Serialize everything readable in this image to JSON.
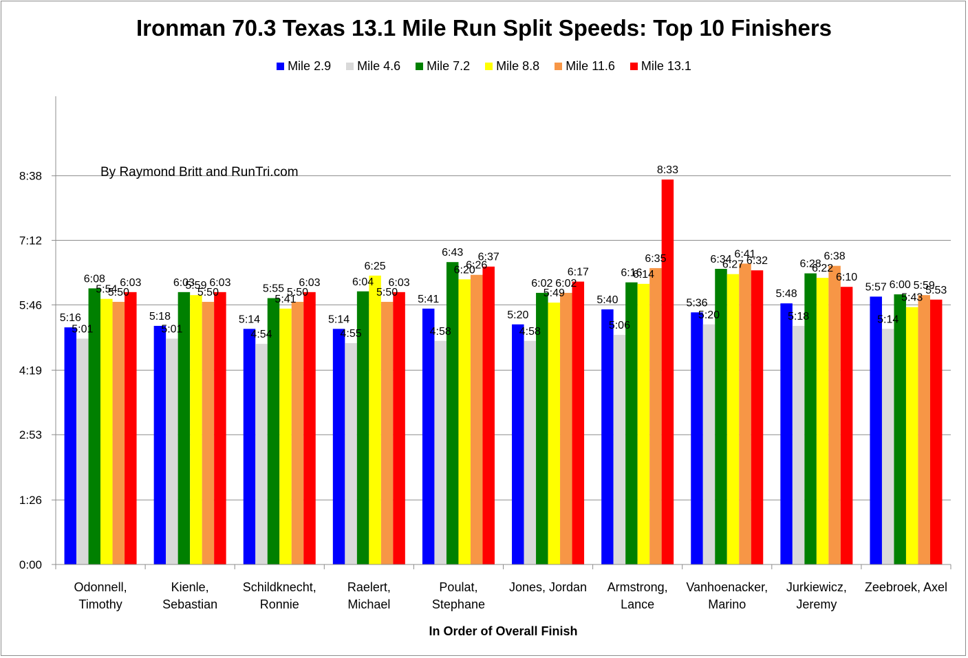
{
  "chart_data": {
    "type": "bar",
    "title": "Ironman 70.3 Texas 13.1 Mile Run Split Speeds: Top 10 Finishers",
    "annotation": "By Raymond Britt and RunTri.com",
    "xlabel": "In Order of Overall Finish",
    "ylabel": "",
    "y_unit": "seconds per mile (displayed as m:ss)",
    "ylim": [
      0,
      624
    ],
    "y_ticks": [
      0,
      86,
      173,
      259,
      346,
      432,
      518
    ],
    "y_tick_labels": [
      "0:00",
      "1:26",
      "2:53",
      "4:19",
      "5:46",
      "7:12",
      "8:38"
    ],
    "grid": true,
    "legend_position": "top",
    "categories": [
      [
        "Odonnell,",
        "Timothy"
      ],
      [
        "Kienle,",
        "Sebastian"
      ],
      [
        "Schildknecht,",
        "Ronnie"
      ],
      [
        "Raelert,",
        "Michael"
      ],
      [
        "Poulat,",
        "Stephane"
      ],
      [
        "Jones, Jordan"
      ],
      [
        "Armstrong,",
        "Lance"
      ],
      [
        "Vanhoenacker,",
        "Marino"
      ],
      [
        "Jurkiewicz,",
        "Jeremy"
      ],
      [
        "Zeebroek, Axel"
      ]
    ],
    "series": [
      {
        "name": "Mile 2.9",
        "color": "#0000ff",
        "values": [
          316,
          318,
          314,
          314,
          341,
          320,
          340,
          336,
          348,
          357
        ],
        "labels": [
          "5:16",
          "5:18",
          "5:14",
          "5:14",
          "5:41",
          "5:20",
          "5:40",
          "5:36",
          "5:48",
          "5:57"
        ]
      },
      {
        "name": "Mile 4.6",
        "color": "#d9d9d9",
        "values": [
          301,
          301,
          294,
          295,
          298,
          298,
          306,
          320,
          318,
          314
        ],
        "labels": [
          "5:01",
          "5:01",
          "4:54",
          "4:55",
          "4:58",
          "4:58",
          "5:06",
          "5:20",
          "5:18",
          "5:14"
        ]
      },
      {
        "name": "Mile 7.2",
        "color": "#008000",
        "values": [
          368,
          363,
          355,
          364,
          403,
          362,
          376,
          394,
          388,
          360
        ],
        "labels": [
          "6:08",
          "6:03",
          "5:55",
          "6:04",
          "6:43",
          "6:02",
          "6:16",
          "6:34",
          "6:28",
          "6:00"
        ]
      },
      {
        "name": "Mile 8.8",
        "color": "#ffff00",
        "values": [
          354,
          359,
          341,
          385,
          380,
          349,
          374,
          387,
          382,
          343
        ],
        "labels": [
          "5:54",
          "5:59",
          "5:41",
          "6:25",
          "6:20",
          "5:49",
          "6:14",
          "6:27",
          "6:22",
          "5:43"
        ]
      },
      {
        "name": "Mile 11.6",
        "color": "#f79646",
        "values": [
          350,
          350,
          350,
          350,
          386,
          362,
          395,
          401,
          398,
          359
        ],
        "labels": [
          "5:50",
          "5:50",
          "5:50",
          "5:50",
          "6:26",
          "6:02",
          "6:35",
          "6:41",
          "6:38",
          "5:59"
        ]
      },
      {
        "name": "Mile 13.1",
        "color": "#ff0000",
        "values": [
          363,
          363,
          363,
          363,
          397,
          377,
          513,
          392,
          370,
          353
        ],
        "labels": [
          "6:03",
          "6:03",
          "6:03",
          "6:03",
          "6:37",
          "6:17",
          "8:33",
          "6:32",
          "6:10",
          "5:53"
        ]
      }
    ]
  }
}
